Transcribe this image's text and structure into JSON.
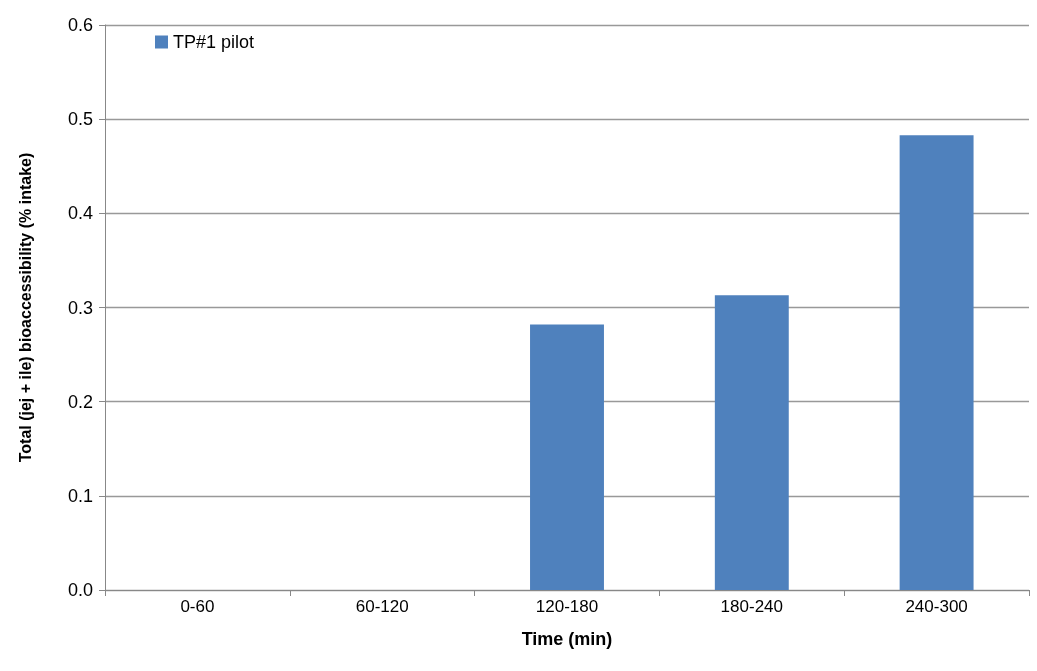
{
  "chart_data": {
    "type": "bar",
    "xlabel": "Time (min)",
    "ylabel": "Total (jej + ile) bioaccessibility (% intake)",
    "categories": [
      "0-60",
      "60-120",
      "120-180",
      "180-240",
      "240-300"
    ],
    "series": [
      {
        "name": "TP#1 pilot",
        "color": "#4f81bd",
        "values": [
          0,
          0,
          0.282,
          0.313,
          0.483
        ]
      }
    ],
    "ylim": [
      0,
      0.6
    ],
    "yticks": [
      {
        "value": 0,
        "label": "0.0"
      },
      {
        "value": 0.1,
        "label": "0.1"
      },
      {
        "value": 0.2,
        "label": "0.2"
      },
      {
        "value": 0.3,
        "label": "0.3"
      },
      {
        "value": 0.4,
        "label": "0.4"
      },
      {
        "value": 0.5,
        "label": "0.5"
      },
      {
        "value": 0.6,
        "label": "0.6"
      }
    ],
    "grid": "y",
    "legend": "top left"
  }
}
